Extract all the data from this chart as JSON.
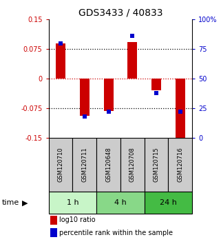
{
  "title": "GDS3433 / 40833",
  "samples": [
    "GSM120710",
    "GSM120711",
    "GSM120648",
    "GSM120708",
    "GSM120715",
    "GSM120716"
  ],
  "log10_ratio": [
    0.09,
    -0.095,
    -0.082,
    0.092,
    -0.03,
    -0.16
  ],
  "percentile_rank": [
    80,
    18,
    22,
    86,
    38,
    22
  ],
  "ylim_left": [
    -0.15,
    0.15
  ],
  "ylim_right": [
    0,
    100
  ],
  "yticks_left": [
    -0.15,
    -0.075,
    0,
    0.075,
    0.15
  ],
  "yticks_left_labels": [
    "-0.15",
    "-0.075",
    "0",
    "0.075",
    "0.15"
  ],
  "yticks_right": [
    0,
    25,
    50,
    75,
    100
  ],
  "yticks_right_labels": [
    "0",
    "25",
    "50",
    "75",
    "100%"
  ],
  "time_groups": [
    {
      "label": "1 h",
      "start": 0,
      "end": 2,
      "color": "#c8f5c8"
    },
    {
      "label": "4 h",
      "start": 2,
      "end": 4,
      "color": "#88d888"
    },
    {
      "label": "24 h",
      "start": 4,
      "end": 6,
      "color": "#44bb44"
    }
  ],
  "bar_color": "#cc0000",
  "point_color": "#0000cc",
  "bar_width": 0.4,
  "point_size": 5,
  "hline_color_zero": "#cc0000",
  "hline_color_grid": "#000000",
  "background_color": "#ffffff",
  "plot_bg_color": "#ffffff",
  "legend_red_label": "log10 ratio",
  "legend_blue_label": "percentile rank within the sample",
  "time_label": "time",
  "sample_box_color": "#cccccc",
  "title_fontsize": 10,
  "tick_fontsize": 7,
  "sample_fontsize": 6,
  "legend_fontsize": 7,
  "time_fontsize": 8
}
